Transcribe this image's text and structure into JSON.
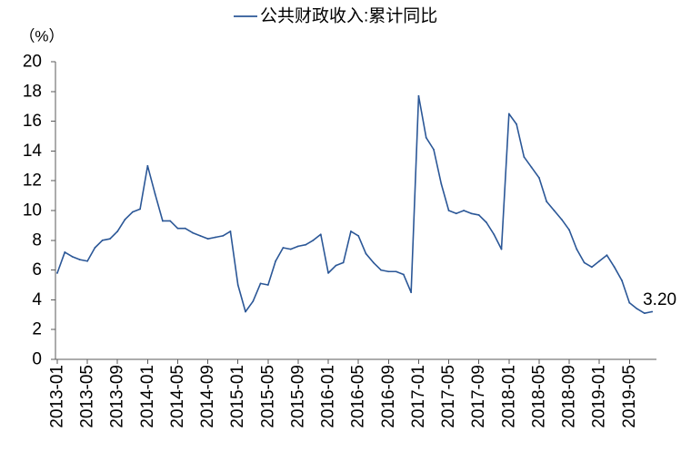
{
  "chart_data": {
    "type": "line",
    "title": "",
    "xlabel": "",
    "ylabel": "（%）",
    "ylim": [
      0,
      20
    ],
    "yticks": [
      0,
      2,
      4,
      6,
      8,
      10,
      12,
      14,
      16,
      18,
      20
    ],
    "xticks": [
      "2013-01",
      "2013-05",
      "2013-09",
      "2014-01",
      "2014-05",
      "2014-09",
      "2015-01",
      "2015-05",
      "2015-09",
      "2016-01",
      "2016-05",
      "2016-09",
      "2017-01",
      "2017-05",
      "2017-09",
      "2018-01",
      "2018-05",
      "2018-09",
      "2019-01",
      "2019-05"
    ],
    "x": [
      "2013-01",
      "2013-02",
      "2013-03",
      "2013-04",
      "2013-05",
      "2013-06",
      "2013-07",
      "2013-08",
      "2013-09",
      "2013-10",
      "2013-11",
      "2013-12",
      "2014-01",
      "2014-02",
      "2014-03",
      "2014-04",
      "2014-05",
      "2014-06",
      "2014-07",
      "2014-08",
      "2014-09",
      "2014-10",
      "2014-11",
      "2014-12",
      "2015-01",
      "2015-02",
      "2015-03",
      "2015-04",
      "2015-05",
      "2015-06",
      "2015-07",
      "2015-08",
      "2015-09",
      "2015-10",
      "2015-11",
      "2015-12",
      "2016-01",
      "2016-02",
      "2016-03",
      "2016-04",
      "2016-05",
      "2016-06",
      "2016-07",
      "2016-08",
      "2016-09",
      "2016-10",
      "2016-11",
      "2016-12",
      "2017-01",
      "2017-02",
      "2017-03",
      "2017-04",
      "2017-05",
      "2017-06",
      "2017-07",
      "2017-08",
      "2017-09",
      "2017-10",
      "2017-11",
      "2017-12",
      "2018-01",
      "2018-02",
      "2018-03",
      "2018-04",
      "2018-05",
      "2018-06",
      "2018-07",
      "2018-08",
      "2018-09",
      "2018-10",
      "2018-11",
      "2018-12",
      "2019-01",
      "2019-02",
      "2019-03",
      "2019-04",
      "2019-05",
      "2019-06",
      "2019-07",
      "2019-08"
    ],
    "series": [
      {
        "name": "公共财政收入:累计同比",
        "color": "#2B5797",
        "values": [
          5.8,
          7.2,
          6.9,
          6.7,
          6.6,
          7.5,
          8.0,
          8.1,
          8.6,
          9.4,
          9.9,
          10.1,
          13.0,
          11.1,
          9.3,
          9.3,
          8.8,
          8.8,
          8.5,
          8.3,
          8.1,
          8.2,
          8.3,
          8.6,
          5.0,
          3.2,
          3.9,
          5.1,
          5.0,
          6.6,
          7.5,
          7.4,
          7.6,
          7.7,
          8.0,
          8.4,
          5.8,
          6.3,
          6.5,
          8.6,
          8.3,
          7.1,
          6.5,
          6.0,
          5.9,
          5.9,
          5.7,
          4.5,
          17.7,
          14.9,
          14.1,
          11.8,
          10.0,
          9.8,
          10.0,
          9.8,
          9.7,
          9.2,
          8.4,
          7.4,
          16.5,
          15.8,
          13.6,
          12.9,
          12.2,
          10.6,
          10.0,
          9.4,
          8.7,
          7.4,
          6.5,
          6.2,
          6.6,
          7.0,
          6.2,
          5.3,
          3.8,
          3.4,
          3.1,
          3.2
        ]
      }
    ],
    "annotations": [
      {
        "x": "2019-08",
        "text": "3.20"
      }
    ],
    "legend_position": "top-center",
    "grid": false
  }
}
